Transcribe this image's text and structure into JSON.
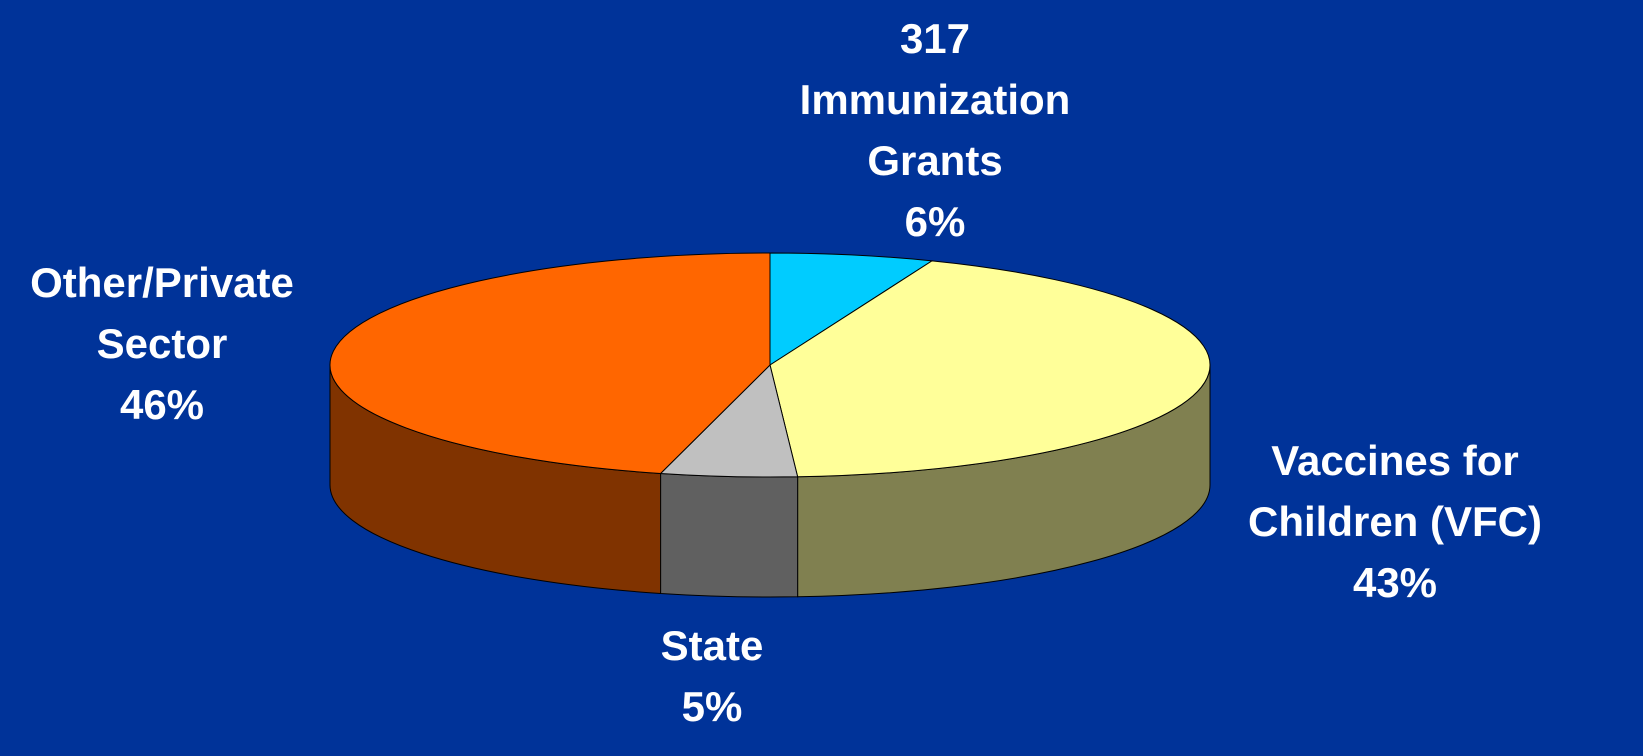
{
  "chart_data": {
    "type": "pie3d",
    "categories": [
      "317 Immunization Grants",
      "Vaccines for Children (VFC)",
      "State",
      "Other/Private Sector"
    ],
    "values": [
      6,
      43,
      5,
      46
    ],
    "value_labels": [
      "6%",
      "43%",
      "5%",
      "46%"
    ],
    "colors": [
      "#00ccff",
      "#ffff99",
      "#c0c0c0",
      "#ff6600"
    ],
    "side_colors": [
      "#007a99",
      "#808050",
      "#606060",
      "#803300"
    ]
  }
}
